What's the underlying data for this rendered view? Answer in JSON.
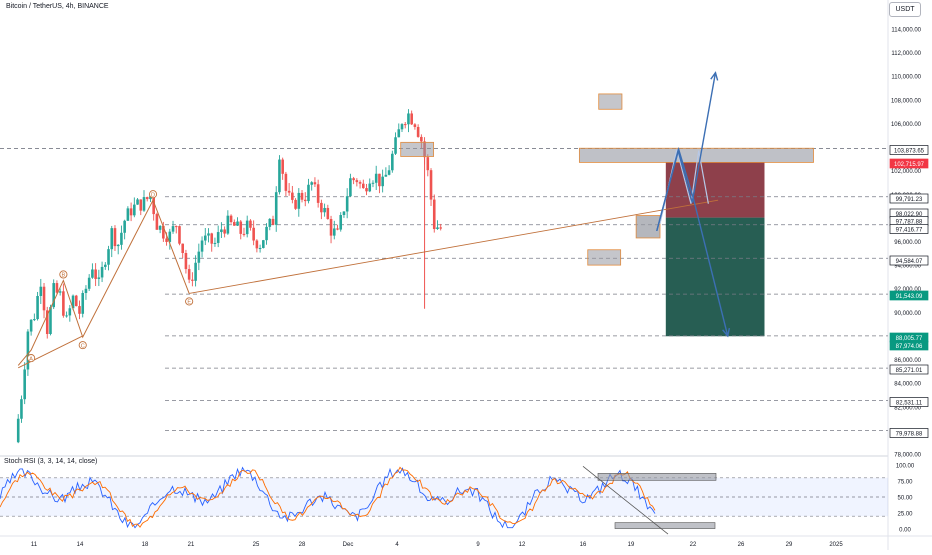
{
  "header": {
    "title": "Bitcoin / TetherUS, 4h, BINANCE",
    "currency_button": "USDT"
  },
  "indicator": {
    "title": "Stoch RSI (3, 3, 14, 14, close)"
  },
  "colors": {
    "up": "#26a69a",
    "down": "#ef5350",
    "wma": "#c0703a",
    "blue_arrow": "#3c6fb4",
    "stoch_k": "#2962ff",
    "stoch_d": "#ff6d00",
    "grey_box": "#9598a1",
    "orange_box_border": "#e08a3c",
    "stop_zone": "#7a1f2b",
    "target_zone": "#0f4d40"
  },
  "chart_data": [
    {
      "type": "candlestick",
      "x_axis_labels": [
        "11",
        "14",
        "18",
        "21",
        "25",
        "28",
        "Dec",
        "4",
        "9",
        "12",
        "16",
        "19",
        "22",
        "26",
        "29",
        "2025"
      ],
      "y_axis_labels": [
        "114,000.00",
        "112,000.00",
        "110,000.00",
        "108,000.00",
        "106,000.00",
        "102,000.00",
        "100,000.00",
        "96,000.00",
        "94,000.00",
        "92,000.00",
        "90,000.00",
        "86,000.00",
        "84,000.00",
        "82,000.00",
        "78,000.00"
      ],
      "ylim": [
        78000,
        115000
      ],
      "price_tags": [
        {
          "value": "103,873.65",
          "style": "white"
        },
        {
          "value": "102,715.97",
          "style": "red"
        },
        {
          "value": "99,791.23",
          "style": "white"
        },
        {
          "value": "98,022.90",
          "style": "white"
        },
        {
          "value": "97,787.88",
          "style": "white"
        },
        {
          "value": "97,416.77",
          "style": "white"
        },
        {
          "value": "94,584.07",
          "style": "white"
        },
        {
          "value": "91,543.09",
          "style": "green"
        },
        {
          "value": "88,005.77",
          "style": "green"
        },
        {
          "value": "87,974.06",
          "style": "green"
        },
        {
          "value": "85,271.01",
          "style": "white"
        },
        {
          "value": "82,531.11",
          "style": "white"
        },
        {
          "value": "79,978.88",
          "style": "white"
        }
      ],
      "horizontal_levels": [
        103873.65,
        99791.23,
        97416.77,
        94584.07,
        91543.09,
        88005.77,
        85271.01,
        82531.11,
        79978.88
      ],
      "trade_setup": {
        "entry": 98022.9,
        "stop": 102715.97,
        "target": 87974.06
      },
      "wave_labels": [
        "A",
        "B",
        "C",
        "D",
        "E"
      ],
      "wave_points": [
        {
          "label": "A",
          "x": 2.5,
          "y": 86800
        },
        {
          "label": "B",
          "x": 7.5,
          "y": 92700
        },
        {
          "label": "C",
          "x": 10.5,
          "y": 87900
        },
        {
          "label": "D",
          "x": 21.4,
          "y": 99500
        },
        {
          "label": "E",
          "x": 27,
          "y": 91600
        }
      ],
      "note": "x values in days since Nov 9",
      "candles_close_path": [
        [
          0,
          79000
        ],
        [
          1,
          83000
        ],
        [
          2,
          88500
        ],
        [
          3,
          89800
        ],
        [
          4,
          92800
        ],
        [
          5,
          88600
        ],
        [
          6,
          91800
        ],
        [
          7,
          91400
        ],
        [
          8,
          89200
        ],
        [
          9,
          91200
        ],
        [
          10,
          90000
        ],
        [
          11,
          92000
        ],
        [
          12,
          94000
        ],
        [
          13,
          92300
        ],
        [
          14,
          94700
        ],
        [
          15,
          96800
        ],
        [
          16,
          95800
        ],
        [
          17,
          97800
        ],
        [
          18,
          98700
        ],
        [
          19,
          99100
        ],
        [
          20,
          99300
        ],
        [
          21,
          99900
        ],
        [
          22,
          97500
        ],
        [
          23,
          96800
        ],
        [
          24,
          96500
        ],
        [
          25,
          97500
        ],
        [
          26,
          95300
        ],
        [
          27,
          92200
        ],
        [
          28,
          94200
        ],
        [
          29,
          96200
        ],
        [
          30,
          96000
        ],
        [
          31,
          95800
        ],
        [
          32,
          97100
        ],
        [
          33,
          97500
        ],
        [
          34,
          97300
        ],
        [
          35,
          96800
        ],
        [
          36,
          97200
        ],
        [
          37,
          96200
        ],
        [
          38,
          95800
        ],
        [
          39,
          96900
        ],
        [
          40,
          97800
        ],
        [
          41,
          103600
        ],
        [
          42,
          100300
        ],
        [
          43,
          98900
        ],
        [
          44,
          99800
        ],
        [
          45,
          99900
        ],
        [
          46,
          100900
        ],
        [
          47,
          99500
        ],
        [
          48,
          98500
        ],
        [
          49,
          97000
        ],
        [
          50,
          96500
        ],
        [
          51,
          98900
        ],
        [
          52,
          101200
        ],
        [
          53,
          101300
        ],
        [
          54,
          100300
        ],
        [
          55,
          101600
        ],
        [
          56,
          101500
        ],
        [
          57,
          100800
        ],
        [
          58,
          102300
        ],
        [
          59,
          104200
        ],
        [
          60,
          106300
        ],
        [
          61,
          106800
        ],
        [
          62,
          106200
        ],
        [
          63,
          104600
        ],
        [
          64,
          101800
        ],
        [
          65,
          97400
        ],
        [
          66,
          97100
        ]
      ],
      "stoch_rsi": {
        "ylim": [
          0,
          100
        ],
        "levels": [
          80,
          50,
          20
        ],
        "y_axis_labels": [
          "100.00",
          "75.00",
          "50.00",
          "25.00",
          "0.00"
        ]
      }
    }
  ]
}
